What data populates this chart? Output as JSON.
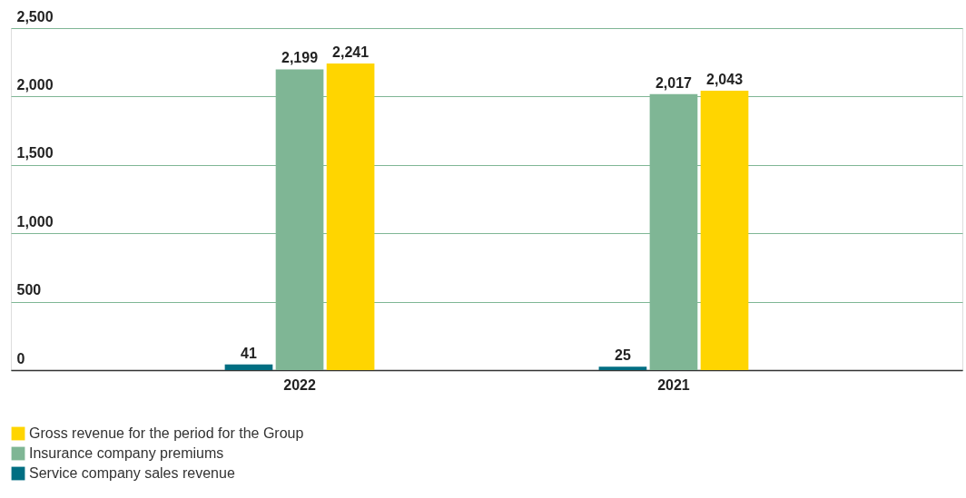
{
  "chart_data": {
    "type": "bar",
    "categories": [
      "2022",
      "2021"
    ],
    "series": [
      {
        "name": "Service company sales revenue",
        "color": "#006e82",
        "values": [
          41,
          25
        ],
        "value_labels": [
          "41",
          "25"
        ]
      },
      {
        "name": "Insurance company premiums",
        "color": "#7fb695",
        "values": [
          2199,
          2017
        ],
        "value_labels": [
          "2,199",
          "2,017"
        ]
      },
      {
        "name": "Gross revenue for the period for the Group",
        "color": "#ffd500",
        "values": [
          2241,
          2043
        ],
        "value_labels": [
          "2,241",
          "2,043"
        ]
      }
    ],
    "ylim": [
      0,
      2500
    ],
    "yticks": [
      0,
      500,
      {
        "value": 1000,
        "label": "1,000"
      },
      {
        "value": 1500,
        "label": "1,500"
      },
      {
        "value": 2000,
        "label": "2,000"
      },
      {
        "value": 2500,
        "label": "2,500"
      }
    ],
    "grid": "y",
    "legend": "bottom left"
  }
}
